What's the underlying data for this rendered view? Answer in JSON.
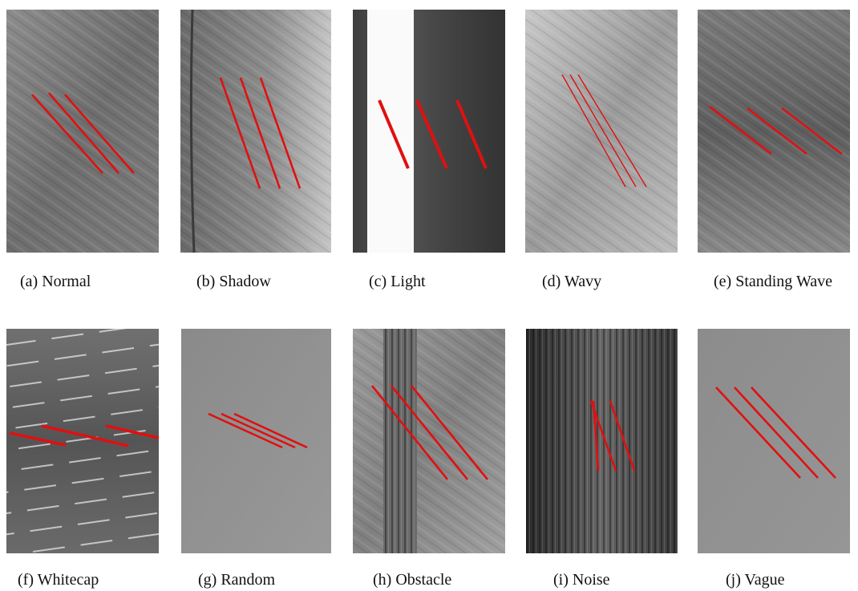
{
  "figure": {
    "panels": [
      {
        "caption": "(a) Normal"
      },
      {
        "caption": "(b) Shadow"
      },
      {
        "caption": "(c) Light"
      },
      {
        "caption": "(d) Wavy"
      },
      {
        "caption": "(e) Standing Wave"
      },
      {
        "caption": "(f) Whitecap"
      },
      {
        "caption": "(g) Random"
      },
      {
        "caption": "(h) Obstacle"
      },
      {
        "caption": "(i) Noise"
      },
      {
        "caption": "(j) Vague"
      }
    ]
  }
}
